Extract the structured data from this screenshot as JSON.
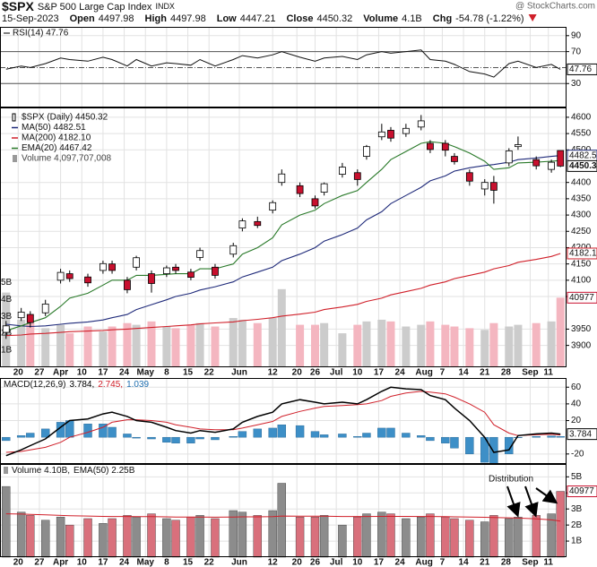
{
  "header": {
    "symbol": "$SPX",
    "name": "S&P 500 Large Cap Index",
    "exchange": "INDX",
    "source": "@ StockCharts.com",
    "date": "15-Sep-2023",
    "stats": [
      {
        "label": "Open",
        "value": "4497.98"
      },
      {
        "label": "High",
        "value": "4497.98"
      },
      {
        "label": "Low",
        "value": "4447.21"
      },
      {
        "label": "Close",
        "value": "4450.32"
      },
      {
        "label": "Volume",
        "value": "4.1B"
      },
      {
        "label": "Chg",
        "value": "-54.78 (-1.22%)"
      }
    ]
  },
  "chart_data": {
    "type": "candlestick",
    "price_label": "$SPX (Daily) 4450.32",
    "volume_label": "Volume 4,097,707,008",
    "x": [
      "2023-03-16",
      "2023-03-21",
      "2023-03-24",
      "2023-03-29",
      "2023-04-03",
      "2023-04-06",
      "2023-04-12",
      "2023-04-17",
      "2023-04-20",
      "2023-04-25",
      "2023-04-28",
      "2023-05-03",
      "2023-05-08",
      "2023-05-11",
      "2023-05-16",
      "2023-05-19",
      "2023-05-24",
      "2023-05-30",
      "2023-06-02",
      "2023-06-07",
      "2023-06-12",
      "2023-06-15",
      "2023-06-21",
      "2023-06-26",
      "2023-06-29",
      "2023-07-05",
      "2023-07-10",
      "2023-07-13",
      "2023-07-18",
      "2023-07-21",
      "2023-07-26",
      "2023-07-31",
      "2023-08-03",
      "2023-08-08",
      "2023-08-11",
      "2023-08-16",
      "2023-08-21",
      "2023-08-24",
      "2023-08-29",
      "2023-09-01",
      "2023-09-07",
      "2023-09-12",
      "2023-09-15"
    ],
    "xlim": [
      "2023-03-14",
      "2023-09-17"
    ],
    "xticks": [
      {
        "value": "2023-03-20",
        "label": "20"
      },
      {
        "value": "2023-03-27",
        "label": "27"
      },
      {
        "value": "2023-04-03",
        "label": "Apr"
      },
      {
        "value": "2023-04-10",
        "label": "10"
      },
      {
        "value": "2023-04-17",
        "label": "17"
      },
      {
        "value": "2023-04-24",
        "label": "24"
      },
      {
        "value": "2023-05-01",
        "label": "May"
      },
      {
        "value": "2023-05-08",
        "label": "8"
      },
      {
        "value": "2023-05-15",
        "label": "15"
      },
      {
        "value": "2023-05-22",
        "label": "22"
      },
      {
        "value": "2023-06-01",
        "label": "Jun"
      },
      {
        "value": "2023-06-12",
        "label": "12"
      },
      {
        "value": "2023-06-20",
        "label": "20"
      },
      {
        "value": "2023-06-26",
        "label": "26"
      },
      {
        "value": "2023-07-03",
        "label": "Jul"
      },
      {
        "value": "2023-07-10",
        "label": "10"
      },
      {
        "value": "2023-07-17",
        "label": "17"
      },
      {
        "value": "2023-07-24",
        "label": "24"
      },
      {
        "value": "2023-08-01",
        "label": "Aug"
      },
      {
        "value": "2023-08-07",
        "label": "7"
      },
      {
        "value": "2023-08-14",
        "label": "14"
      },
      {
        "value": "2023-08-21",
        "label": "21"
      },
      {
        "value": "2023-08-28",
        "label": "28"
      },
      {
        "value": "2023-09-05",
        "label": "Sep"
      },
      {
        "value": "2023-09-11",
        "label": "11"
      }
    ],
    "open": [
      3940,
      3985,
      3995,
      4000,
      4100,
      4120,
      4110,
      4130,
      4150,
      4100,
      4140,
      4120,
      4120,
      4140,
      4125,
      4170,
      4140,
      4180,
      4260,
      4280,
      4315,
      4400,
      4390,
      4350,
      4370,
      4425,
      4430,
      4480,
      4540,
      4560,
      4550,
      4570,
      4520,
      4520,
      4480,
      4430,
      4380,
      4400,
      4460,
      4510,
      4470,
      4440,
      4497.98
    ],
    "high": [
      3975,
      4015,
      4005,
      4040,
      4135,
      4130,
      4120,
      4160,
      4160,
      4110,
      4175,
      4130,
      4145,
      4150,
      4135,
      4200,
      4150,
      4215,
      4290,
      4295,
      4345,
      4440,
      4400,
      4360,
      4400,
      4460,
      4440,
      4515,
      4580,
      4570,
      4580,
      4607,
      4530,
      4530,
      4490,
      4440,
      4410,
      4420,
      4505,
      4541,
      4480,
      4470,
      4497.98
    ],
    "low": [
      3920,
      3975,
      3955,
      3990,
      4090,
      4095,
      4080,
      4120,
      4120,
      4060,
      4130,
      4062,
      4110,
      4120,
      4100,
      4160,
      4105,
      4170,
      4250,
      4260,
      4305,
      4390,
      4355,
      4320,
      4360,
      4415,
      4390,
      4470,
      4530,
      4525,
      4540,
      4560,
      4490,
      4480,
      4455,
      4390,
      4360,
      4335,
      4450,
      4500,
      4440,
      4430,
      4447.21
    ],
    "close": [
      3960,
      4002,
      3970,
      4027,
      4124,
      4105,
      4092,
      4151,
      4130,
      4071,
      4169,
      4090,
      4138,
      4130,
      4109,
      4191,
      4115,
      4206,
      4282,
      4268,
      4338,
      4426,
      4366,
      4328,
      4396,
      4447,
      4409,
      4510,
      4555,
      4536,
      4566,
      4589,
      4501,
      4499,
      4464,
      4404,
      4400,
      4376,
      4497,
      4516,
      4451,
      4462,
      4450.32
    ],
    "up_color": "#ffffff",
    "down_color": "#c8102e",
    "series": [
      {
        "name": "MA(50) 4482.51",
        "color": "#1f2a7a",
        "values": [
          3965,
          3960,
          3958,
          3960,
          3965,
          3968,
          3972,
          3978,
          3985,
          3995,
          4010,
          4025,
          4040,
          4050,
          4060,
          4070,
          4080,
          4095,
          4110,
          4125,
          4140,
          4160,
          4180,
          4200,
          4220,
          4240,
          4260,
          4285,
          4310,
          4335,
          4360,
          4385,
          4405,
          4420,
          4435,
          4445,
          4452,
          4455,
          4462,
          4470,
          4475,
          4480,
          4482.51
        ]
      },
      {
        "name": "MA(200) 4182.10",
        "color": "#d0202a",
        "values": [
          3930,
          3932,
          3935,
          3937,
          3940,
          3942,
          3944,
          3946,
          3948,
          3950,
          3952,
          3955,
          3958,
          3960,
          3963,
          3966,
          3969,
          3972,
          3976,
          3980,
          3985,
          3990,
          3996,
          4002,
          4010,
          4018,
          4026,
          4035,
          4045,
          4055,
          4065,
          4075,
          4085,
          4095,
          4105,
          4115,
          4125,
          4135,
          4145,
          4155,
          4164,
          4173,
          4182.1
        ]
      },
      {
        "name": "EMA(20) 4467.42",
        "color": "#2a7a2a",
        "values": [
          3945,
          3960,
          3970,
          3985,
          4020,
          4045,
          4060,
          4085,
          4100,
          4100,
          4115,
          4115,
          4118,
          4120,
          4120,
          4135,
          4135,
          4150,
          4180,
          4200,
          4230,
          4270,
          4300,
          4315,
          4335,
          4360,
          4375,
          4400,
          4440,
          4470,
          4495,
          4520,
          4525,
          4520,
          4510,
          4490,
          4465,
          4440,
          4445,
          4460,
          4462,
          4465,
          4467.42
        ]
      }
    ],
    "ylim": [
      3833,
      4630
    ],
    "yticks": [
      3900,
      3950,
      4050,
      4100,
      4150,
      4200,
      4250,
      4300,
      4350,
      4400,
      4500,
      4550,
      4600
    ],
    "grid": true,
    "tags": [
      {
        "value": 4482.51,
        "label": "4482.5",
        "color": "#1f2a7a"
      },
      {
        "value": 4450.32,
        "label": "4450.3",
        "color": "#000000"
      },
      {
        "value": 4182.1,
        "label": "4182.1",
        "color": "#d0202a"
      }
    ],
    "volume_ylim": [
      0,
      15.3
    ],
    "volume_yticks": [
      {
        "value": 1,
        "label": "1B"
      },
      {
        "value": 2,
        "label": "2B"
      },
      {
        "value": 3,
        "label": "3B"
      },
      {
        "value": 4,
        "label": "4B"
      },
      {
        "value": 5,
        "label": "5B"
      }
    ],
    "volume_tag": {
      "value": 4.097707008,
      "label": "40977"
    },
    "overlay_up_color": "#cccccc",
    "overlay_down_color": "#f4b6c0",
    "panels": [
      {
        "type": "line",
        "title": "RSI(14) 47.76",
        "color": "#111111",
        "ylim": [
          0,
          101
        ],
        "yticks": [
          30,
          70,
          90
        ],
        "ref_lines": [
          70,
          50,
          30
        ],
        "tag": {
          "value": 47.76,
          "label": "47.76"
        },
        "values": [
          48,
          52,
          50,
          55,
          62,
          60,
          58,
          63,
          60,
          52,
          60,
          52,
          56,
          55,
          53,
          60,
          52,
          60,
          65,
          62,
          66,
          70,
          63,
          58,
          62,
          64,
          60,
          66,
          70,
          68,
          70,
          72,
          60,
          58,
          54,
          45,
          42,
          38,
          55,
          58,
          50,
          54,
          47.76
        ]
      },
      {
        "type": "macd",
        "title": "MACD(12,26,9)",
        "ylim": [
          -32,
          71
        ],
        "yticks": [
          -20,
          20,
          40,
          60
        ],
        "tag": {
          "value": 3.784,
          "label": "3.784"
        },
        "series": [
          {
            "name": "3.784,",
            "color": "#000000",
            "values": [
              -22,
              -15,
              -10,
              -2,
              12,
              20,
              22,
              28,
              30,
              25,
              20,
              18,
              12,
              8,
              5,
              8,
              6,
              10,
              18,
              25,
              30,
              40,
              45,
              42,
              40,
              42,
              40,
              45,
              55,
              60,
              58,
              57,
              50,
              45,
              35,
              20,
              0,
              -18,
              -15,
              2,
              4,
              5,
              3.784
            ]
          },
          {
            "name": "2.745,",
            "color": "#d0202a",
            "values": [
              -18,
              -17,
              -15,
              -12,
              -6,
              0,
              6,
              12,
              18,
              21,
              21,
              20,
              18,
              15,
              12,
              10,
              9,
              9,
              11,
              15,
              19,
              25,
              31,
              35,
              37,
              38,
              39,
              40,
              44,
              49,
              53,
              55,
              54,
              52,
              48,
              40,
              30,
              15,
              5,
              2,
              3,
              3.5,
              2.745
            ]
          },
          {
            "name": "1.039",
            "color": "#3d8fc7",
            "values": [
              -4,
              2,
              5,
              10,
              18,
              20,
              16,
              16,
              12,
              4,
              -1,
              -2,
              -6,
              -7,
              -7,
              -2,
              -3,
              1,
              7,
              10,
              11,
              15,
              14,
              7,
              3,
              4,
              1,
              5,
              11,
              11,
              5,
              2,
              -4,
              -7,
              -13,
              -20,
              -30,
              -33,
              -20,
              0,
              1,
              1.5,
              1.039
            ]
          }
        ]
      },
      {
        "type": "bar",
        "ylim": [
          0,
          5.8
        ],
        "yticks": [
          {
            "value": 1,
            "label": "1B"
          },
          {
            "value": 2,
            "label": "2B"
          },
          {
            "value": 3,
            "label": "3B"
          },
          {
            "value": 4,
            "label": "4B"
          },
          {
            "value": 5,
            "label": "5B"
          }
        ],
        "up_color": "#8c8c8c",
        "down_color": "#d9707c",
        "annotation": "Distribution",
        "tag": {
          "value": 4.097707008,
          "label": "40977"
        },
        "series": [
          {
            "name": "Volume 4.10B,",
            "color": "#8c8c8c",
            "values": [
              4.4,
              2.8,
              2.6,
              2.3,
              2.5,
              2.0,
              2.4,
              2.1,
              2.4,
              2.6,
              2.5,
              2.7,
              2.4,
              2.3,
              2.5,
              2.6,
              2.4,
              2.9,
              2.8,
              2.6,
              2.9,
              4.6,
              2.5,
              2.5,
              2.6,
              2.0,
              2.5,
              2.7,
              2.8,
              2.7,
              2.4,
              2.5,
              2.7,
              2.5,
              2.4,
              2.3,
              2.2,
              2.6,
              2.4,
              2.5,
              2.6,
              2.7,
              4.097707008
            ]
          },
          {
            "name": "EMA(50) 2.25B",
            "color": "#d0202a",
            "values": [
              2.7,
              2.68,
              2.66,
              2.63,
              2.6,
              2.58,
              2.56,
              2.54,
              2.53,
              2.53,
              2.52,
              2.52,
              2.51,
              2.5,
              2.5,
              2.5,
              2.49,
              2.5,
              2.51,
              2.51,
              2.52,
              2.56,
              2.55,
              2.55,
              2.55,
              2.53,
              2.53,
              2.53,
              2.54,
              2.54,
              2.54,
              2.53,
              2.53,
              2.52,
              2.51,
              2.5,
              2.48,
              2.47,
              2.45,
              2.43,
              2.38,
              2.32,
              2.25
            ]
          }
        ]
      }
    ]
  }
}
